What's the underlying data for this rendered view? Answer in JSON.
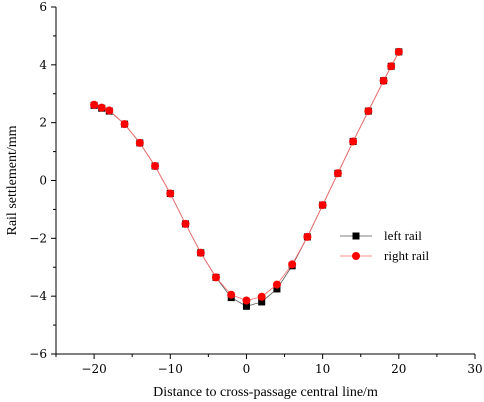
{
  "chart_data": {
    "type": "scatter",
    "xlabel": "Distance to cross-passage central line/m",
    "ylabel": "Rail settlement/mm",
    "xlim": [
      -25,
      30
    ],
    "ylim": [
      -6,
      6
    ],
    "xticks": [
      -20,
      -10,
      0,
      10,
      20,
      30
    ],
    "yticks": [
      -6,
      -4,
      -2,
      0,
      2,
      4,
      6
    ],
    "grid": false,
    "legend_position": "right",
    "series": [
      {
        "name": "left rail",
        "color": "#000000",
        "marker": "square",
        "x": [
          -20,
          -19,
          -18,
          -16,
          -14,
          -12,
          -10,
          -8,
          -6,
          -4,
          -2,
          0,
          2,
          4,
          6,
          8,
          10,
          12,
          14,
          16,
          18,
          19,
          20
        ],
        "y": [
          2.6,
          2.5,
          2.4,
          1.95,
          1.3,
          0.5,
          -0.45,
          -1.5,
          -2.5,
          -3.35,
          -4.05,
          -4.35,
          -4.2,
          -3.75,
          -2.95,
          -1.95,
          -0.85,
          0.25,
          1.35,
          2.4,
          3.45,
          3.95,
          4.45
        ]
      },
      {
        "name": "right rail",
        "color": "#ff0000",
        "marker": "circle",
        "x": [
          -20,
          -19,
          -18,
          -16,
          -14,
          -12,
          -10,
          -8,
          -6,
          -4,
          -2,
          0,
          2,
          4,
          6,
          8,
          10,
          12,
          14,
          16,
          18,
          19,
          20
        ],
        "y": [
          2.62,
          2.52,
          2.42,
          1.95,
          1.3,
          0.5,
          -0.45,
          -1.5,
          -2.5,
          -3.35,
          -3.95,
          -4.15,
          -4.02,
          -3.6,
          -2.9,
          -1.95,
          -0.85,
          0.25,
          1.35,
          2.4,
          3.45,
          3.95,
          4.45
        ]
      }
    ]
  }
}
